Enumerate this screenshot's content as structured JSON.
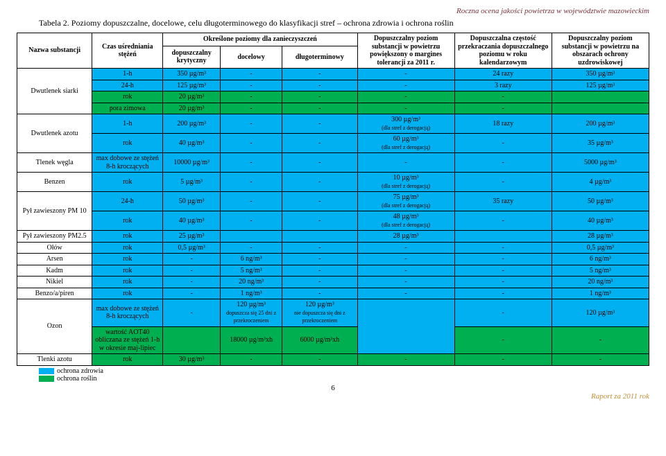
{
  "doc_header": "Roczna ocena jakości powietrza w województwie mazowieckim",
  "caption": "Tabela 2. Poziomy dopuszczalne, docelowe, celu długoterminowego do klasyfikacji stref – ochrona zdrowia i ochrona roślin",
  "headers": {
    "name": "Nazwa substancji",
    "time": "Czas uśredniania stężeń",
    "levels": "Określone poziomy dla zanieczyszczeń",
    "crit": "dopuszczalny krytyczny",
    "target": "docelowy",
    "long": "długoterminowy",
    "tol": "Dopuszczalny poziom substancji w powietrzu powiększony o margines tolerancji za 2011 r.",
    "freq": "Dopuszczalna częstość przekraczania dopuszczalnego poziomu w roku kalendarzowym",
    "health": "Dopuszczalny poziom substancji w powietrzu na obszarach ochrony uzdrowiskowej"
  },
  "subst": {
    "so2": "Dwutlenek siarki",
    "no2": "Dwutlenek azotu",
    "co": "Tlenek węgla",
    "benzen": "Benzen",
    "pm10": "Pył zawieszony PM 10",
    "pm25": "Pył zawieszony PM2.5",
    "pb": "Ołów",
    "as": "Arsen",
    "cd": "Kadm",
    "ni": "Nikiel",
    "bap": "Benzo/a/piren",
    "o3": "Ozon",
    "nox": "Tlenki azotu"
  },
  "time": {
    "h1": "1-h",
    "h24": "24-h",
    "rok": "rok",
    "pora": "pora zimowa",
    "max8h": "max dobowe ze stężeń 8-h kroczących",
    "aot40": "wartość AOT40 obliczana ze stężeń 1-h w okresie maj-lipiec"
  },
  "rows": {
    "so2_1h": {
      "crit": "350 µg/m³",
      "target": "-",
      "long": "-",
      "tol": "-",
      "freq": "24 razy",
      "health": "350 µg/m³"
    },
    "so2_24h": {
      "crit": "125 µg/m³",
      "target": "-",
      "long": "-",
      "tol": "-",
      "freq": "3 razy",
      "health": "125 µg/m³"
    },
    "so2_rok": {
      "crit": "20 µg/m³",
      "target": "-",
      "long": "-",
      "tol": "-",
      "freq": "-",
      "health": ""
    },
    "so2_pora": {
      "crit": "20 µg/m³",
      "target": "-",
      "long": "-",
      "tol": "-",
      "freq": "-",
      "health": ""
    },
    "no2_1h": {
      "crit": "200 µg/m³",
      "target": "-",
      "long": "-",
      "tol": "300 µg/m³",
      "tol_note": "(dla stref z derogacją)",
      "freq": "18 razy",
      "health": "200 µg/m³"
    },
    "no2_rok": {
      "crit": "40 µg/m³",
      "target": "-",
      "long": "-",
      "tol": "60 µg/m³",
      "tol_note": "(dla stref z derogacją)",
      "freq": "-",
      "health": "35 µg/m³"
    },
    "co": {
      "crit": "10000 µg/m³",
      "target": "-",
      "long": "-",
      "tol": "-",
      "freq": "-",
      "health": "5000 µg/m³"
    },
    "benzen": {
      "crit": "5 µg/m³",
      "target": "-",
      "long": "-",
      "tol": "10 µg/m³",
      "tol_note": "(dla stref z derogacją)",
      "freq": "-",
      "health": "4 µg/m³"
    },
    "pm10_24h": {
      "crit": "50 µg/m³",
      "target": "-",
      "long": "-",
      "tol": "75 µg/m³",
      "tol_note": "(dla stref z derogacją)",
      "freq": "35 razy",
      "health": "50 µg/m³"
    },
    "pm10_rok": {
      "crit": "40 µg/m³",
      "target": "-",
      "long": "-",
      "tol": "48 µg/m³",
      "tol_note": "(dla stref z derogacją)",
      "freq": "-",
      "health": "40 µg/m³"
    },
    "pm25": {
      "crit": "25 µg/m³",
      "target": "",
      "long": "",
      "tol": "28 µg/m³",
      "freq": "",
      "health": "28 µg/m³"
    },
    "pb": {
      "crit": "0,5 µg/m³",
      "target": "-",
      "long": "-",
      "tol": "-",
      "freq": "-",
      "health": "0,5 µg/m³"
    },
    "as": {
      "crit": "-",
      "target": "6 ng/m³",
      "long": "-",
      "tol": "-",
      "freq": "-",
      "health": "6 ng/m³"
    },
    "cd": {
      "crit": "-",
      "target": "5 ng/m³",
      "long": "-",
      "tol": "-",
      "freq": "-",
      "health": "5 ng/m³"
    },
    "ni": {
      "crit": "-",
      "target": "20 ng/m³",
      "long": "-",
      "tol": "-",
      "freq": "-",
      "health": "20 ng/m³"
    },
    "bap": {
      "crit": "-",
      "target": "1 ng/m³",
      "long": "-",
      "tol": "-",
      "freq": "-",
      "health": "1 ng/m³"
    },
    "o3_8h": {
      "crit": "-",
      "target": "120 µg/m³",
      "target_note": "dopuszcza się 25 dni z przekroczeniem",
      "long": "120 µg/m³",
      "long_note": "nie dopuszcza się dni z przekroczeniem",
      "tol": "",
      "freq": "-",
      "health": "120 µg/m³"
    },
    "o3_aot": {
      "crit": "",
      "target": "18000 µg/m³xh",
      "long": "6000 µg/m³xh",
      "tol": "",
      "freq": "-",
      "health": "-"
    },
    "nox": {
      "crit": "30 µg/m³",
      "target": "-",
      "long": "-",
      "tol": "-",
      "freq": "-",
      "health": "-"
    }
  },
  "legend": {
    "health": "ochrona zdrowia",
    "plants": "ochrona roślin"
  },
  "colors": {
    "health": "#00b0f0",
    "plants": "#00b050"
  },
  "page_num": "6",
  "footer": "Raport za 2011 rok"
}
